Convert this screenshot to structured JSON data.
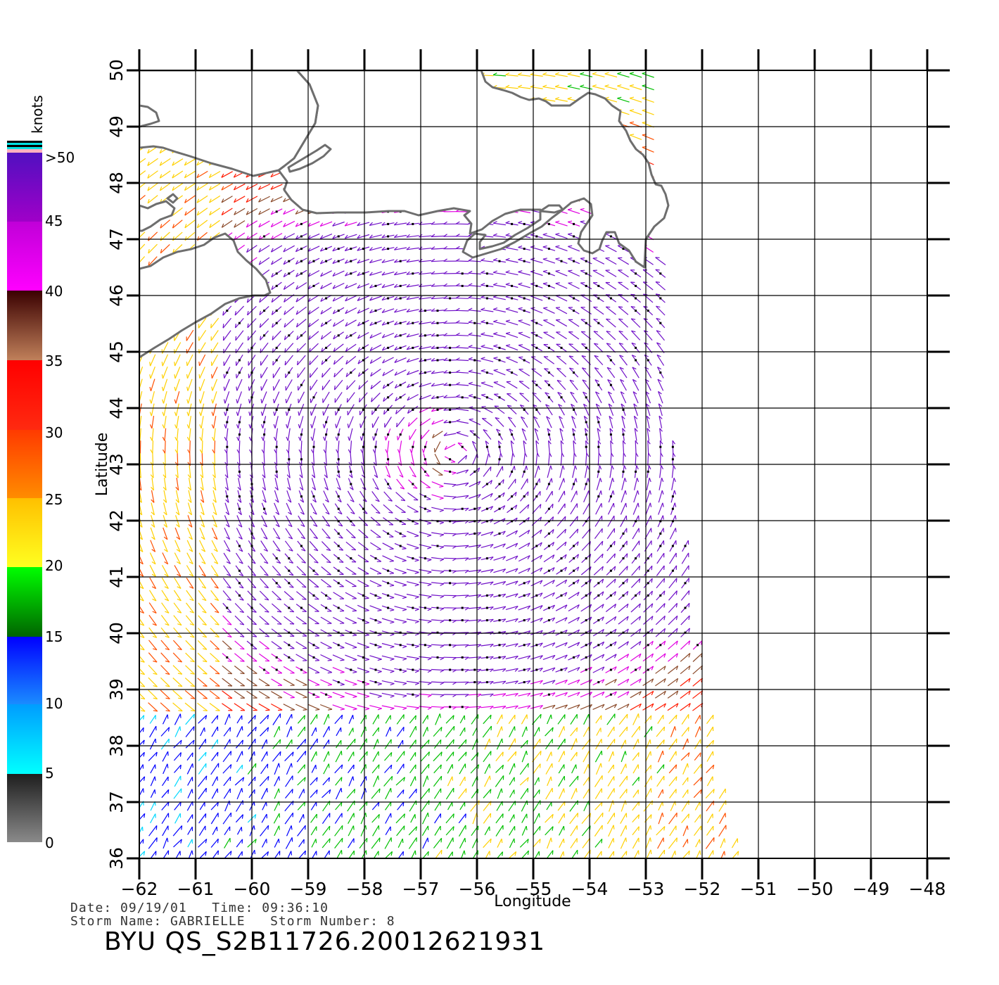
{
  "chart_data": {
    "type": "wind-vector-map",
    "xlabel": "Longitude",
    "ylabel": "Latitude",
    "xlim": [
      -62,
      -48
    ],
    "ylim": [
      36,
      50
    ],
    "x_ticks": [
      "−62",
      "−61",
      "−60",
      "−59",
      "−58",
      "−57",
      "−56",
      "−55",
      "−54",
      "−53",
      "−52",
      "−51",
      "−50",
      "−49",
      "−48"
    ],
    "y_ticks": [
      "36",
      "37",
      "38",
      "39",
      "40",
      "41",
      "42",
      "43",
      "44",
      "45",
      "46",
      "47",
      "48",
      "49",
      "50"
    ],
    "grid": true,
    "swath_east_edge_lon": [
      [
        50,
        -52.9
      ],
      [
        44,
        -52.6
      ],
      [
        40,
        -52.1
      ],
      [
        37,
        -51.6
      ],
      [
        36,
        -51.3
      ]
    ],
    "storm_center": {
      "lon": -56.4,
      "lat": 43.2
    },
    "colorbar": {
      "unit": "knots",
      "labels": [
        "0",
        "5",
        "10",
        "15",
        "20",
        "25",
        "30",
        "35",
        "40",
        "45",
        ">50"
      ],
      "colors": {
        "0-5": "#5a5a5a",
        "5-10": "#00d8ff",
        "10-15": "#0000ff",
        "15-20": "#00c000",
        "20-25": "#ffd000",
        "25-30": "#ff5000",
        "30-35": "#ff1a00",
        "35-40": "#8b4a2a",
        "40-45": "#e000e0",
        "45-50": "#7010c8"
      }
    }
  },
  "footer": {
    "line1": "Date: 09/19/01   Time: 09:36:10",
    "line2": "Storm Name: GABRIELLE   Storm Number: 8",
    "id": "BYU QS_S2B11726.20012621931"
  }
}
